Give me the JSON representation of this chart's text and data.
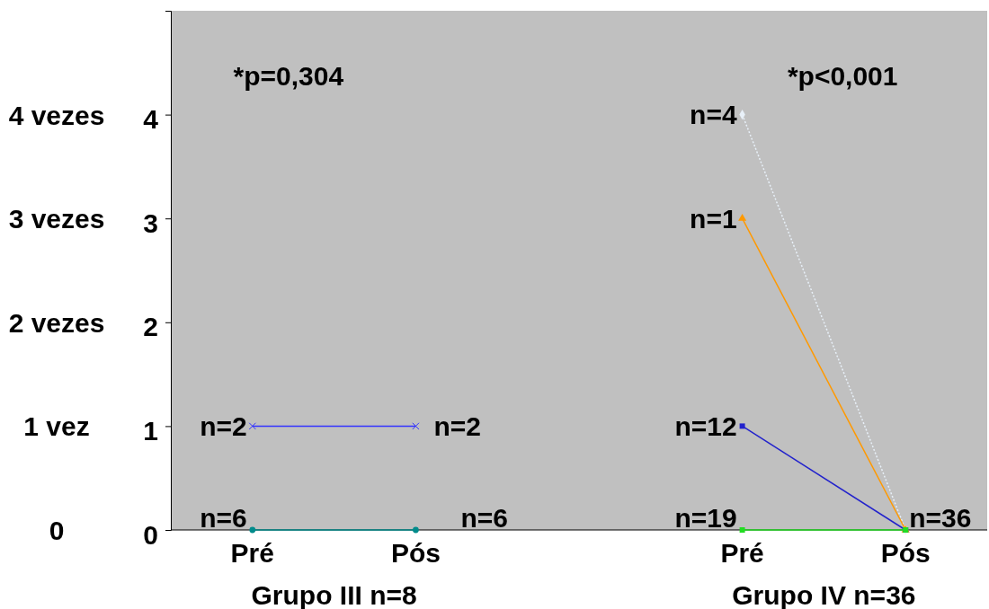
{
  "chart_data": {
    "type": "line",
    "categories": [
      "Pré",
      "Pós",
      null,
      "Pré",
      "Pós"
    ],
    "ylim": [
      0,
      5
    ],
    "yticks": [
      0,
      1,
      2,
      3,
      4
    ],
    "y2lim": [
      0,
      5
    ],
    "y2ticks": [
      {
        "value": 0,
        "label": "0"
      },
      {
        "value": 1,
        "label": "1 vez"
      },
      {
        "value": 2,
        "label": "2 vezes"
      },
      {
        "value": 3,
        "label": "3 vezes"
      },
      {
        "value": 4,
        "label": "4 vezes"
      }
    ],
    "legend": false,
    "grid": false,
    "series": [
      {
        "name": "n=2",
        "color": "#3333ff",
        "marker": "cross",
        "values": [
          1,
          1,
          null,
          null,
          null
        ]
      },
      {
        "name": "n=6",
        "color": "#008b8b",
        "marker": "circle",
        "values": [
          0,
          0,
          null,
          null,
          null
        ]
      },
      {
        "name": "n=4",
        "color": "#e8f0f8",
        "marker": "diamond",
        "line_style": "dotted",
        "values": [
          null,
          null,
          null,
          4,
          0
        ]
      },
      {
        "name": "n=1",
        "color": "#ff9900",
        "marker": "triangle",
        "values": [
          null,
          null,
          null,
          3,
          0
        ]
      },
      {
        "name": "n=12",
        "color": "#2222cc",
        "marker": "square",
        "values": [
          null,
          null,
          null,
          1,
          0
        ]
      },
      {
        "name": "n=19",
        "color": "#22dd22",
        "marker": "square",
        "values": [
          null,
          null,
          null,
          0,
          0
        ]
      }
    ],
    "annotations": [
      "*p=0,304",
      "*p<0,001",
      "n=36",
      "Grupo III n=8",
      "Grupo IV n=36"
    ]
  }
}
